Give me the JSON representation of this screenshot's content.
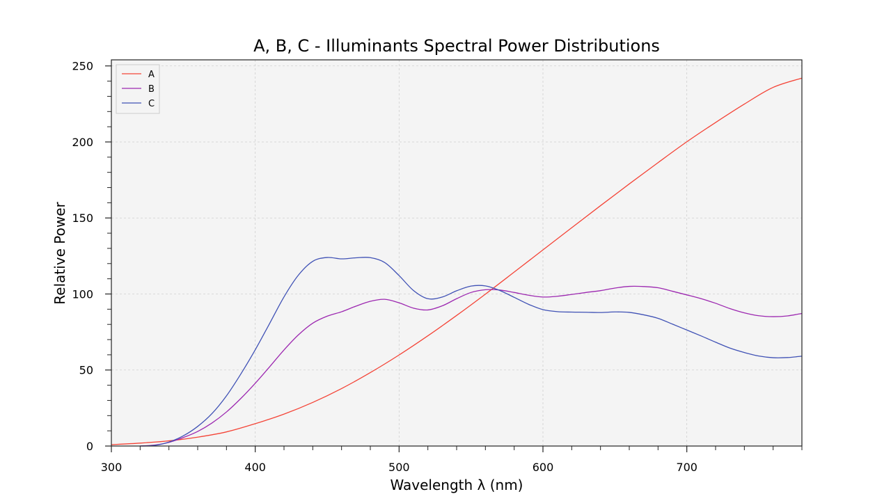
{
  "chart_data": {
    "type": "line",
    "title": "A, B, C - Illuminants Spectral Power Distributions",
    "xlabel": "Wavelength λ (nm)",
    "ylabel": "Relative Power",
    "xlim": [
      300,
      780
    ],
    "ylim": [
      0,
      254
    ],
    "xticks": [
      300,
      400,
      500,
      600,
      700
    ],
    "yticks": [
      0,
      50,
      100,
      150,
      200,
      250
    ],
    "grid": true,
    "legend_position": "top-left",
    "background_color": "#f4f4f4",
    "series": [
      {
        "name": "A",
        "color": "#f44336",
        "x": [
          300,
          320,
          340,
          360,
          380,
          400,
          420,
          440,
          460,
          480,
          500,
          520,
          540,
          560,
          580,
          600,
          620,
          640,
          660,
          680,
          700,
          720,
          740,
          760,
          780
        ],
        "y": [
          0.93,
          1.92,
          3.4,
          5.85,
          9.3,
          14.7,
          21.0,
          28.7,
          37.8,
          48.3,
          59.9,
          72.5,
          85.9,
          99.9,
          114.4,
          129.0,
          143.6,
          158.1,
          172.4,
          186.4,
          200.1,
          212.8,
          224.9,
          235.9,
          242.0
        ]
      },
      {
        "name": "B",
        "color": "#9c27b0",
        "x": [
          320,
          330,
          340,
          350,
          360,
          370,
          380,
          390,
          400,
          410,
          420,
          430,
          440,
          450,
          460,
          470,
          480,
          490,
          500,
          510,
          520,
          530,
          540,
          550,
          560,
          570,
          580,
          590,
          600,
          610,
          620,
          630,
          640,
          650,
          660,
          670,
          680,
          690,
          700,
          710,
          720,
          730,
          740,
          750,
          760,
          770,
          780
        ],
        "y": [
          0.02,
          0.6,
          2.4,
          5.6,
          9.6,
          15.2,
          22.4,
          31.3,
          41.3,
          52.1,
          63.2,
          73.1,
          80.8,
          85.4,
          88.3,
          92.0,
          95.2,
          96.5,
          94.2,
          90.7,
          89.5,
          92.2,
          96.9,
          101.0,
          102.8,
          102.6,
          101.0,
          99.2,
          98.0,
          98.5,
          99.7,
          101.0,
          102.2,
          103.9,
          105.0,
          104.9,
          104.1,
          101.8,
          99.4,
          96.9,
          93.9,
          90.4,
          87.6,
          85.7,
          85.1,
          85.6,
          87.2
        ]
      },
      {
        "name": "C",
        "color": "#3f51b5",
        "x": [
          320,
          330,
          340,
          350,
          360,
          370,
          380,
          390,
          400,
          410,
          420,
          430,
          440,
          450,
          460,
          470,
          480,
          490,
          500,
          510,
          520,
          530,
          540,
          550,
          560,
          570,
          580,
          590,
          600,
          610,
          620,
          630,
          640,
          650,
          660,
          670,
          680,
          690,
          700,
          710,
          720,
          730,
          740,
          750,
          760,
          770,
          780
        ],
        "y": [
          0.01,
          0.4,
          2.6,
          6.7,
          12.9,
          21.4,
          33.0,
          47.4,
          63.3,
          80.6,
          98.1,
          112.4,
          121.5,
          124.0,
          123.1,
          123.8,
          123.9,
          120.7,
          112.1,
          102.3,
          96.9,
          98.0,
          102.1,
          105.2,
          105.3,
          102.3,
          97.8,
          93.2,
          89.7,
          88.4,
          88.1,
          88.0,
          87.8,
          88.2,
          87.9,
          86.3,
          84.0,
          80.2,
          76.3,
          72.4,
          68.3,
          64.4,
          61.5,
          59.2,
          58.1,
          58.2,
          59.1
        ]
      }
    ]
  }
}
